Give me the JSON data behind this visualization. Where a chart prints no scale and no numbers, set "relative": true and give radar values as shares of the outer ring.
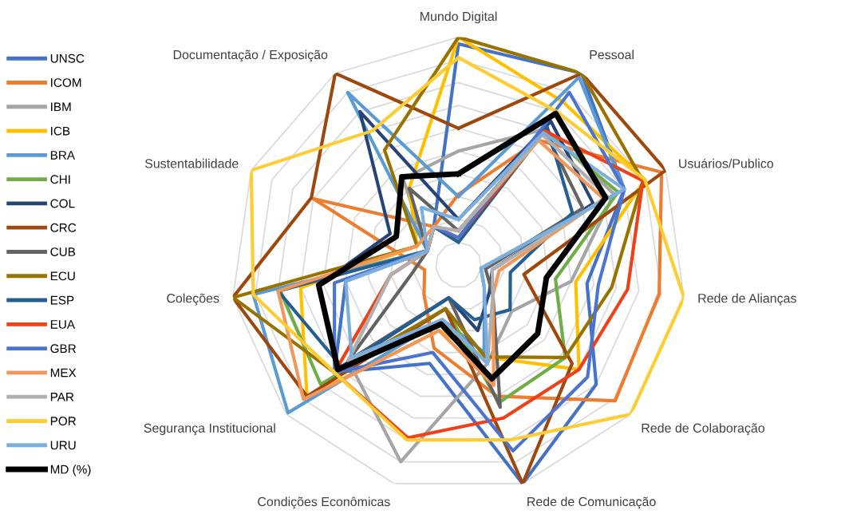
{
  "chart_data": {
    "type": "radar",
    "relative": true,
    "legend": "left",
    "grid": true,
    "categories": [
      "Mundo Digital",
      "Pessoal",
      "Usuários/Publico",
      "Rede de Alianças",
      "Rede de Colaboração",
      "Rede de Comunicação",
      "Condições Econômicas",
      "Segurança Institucional",
      "Coleções",
      "Sustentabilidade",
      "Documentação / Exposição"
    ],
    "series": [
      {
        "name": "UNSC",
        "color": "#4472c4",
        "values": [
          0.97,
          1.0,
          0.8,
          0.57,
          0.8,
          1.0,
          0.45,
          0.72,
          0.5,
          0.15,
          0.2
        ]
      },
      {
        "name": "ICOM",
        "color": "#ed7d31",
        "values": [
          0.31,
          0.65,
          0.98,
          0.89,
          0.91,
          0.6,
          0.38,
          0.2,
          0.15,
          0.7,
          0.2
        ]
      },
      {
        "name": "IBM",
        "color": "#a5a5a5",
        "values": [
          0.5,
          0.71,
          0.75,
          0.5,
          0.31,
          0.45,
          0.9,
          0.64,
          0.3,
          0.15,
          0.45
        ]
      },
      {
        "name": "ICB",
        "color": "#ffc000",
        "values": [
          1.0,
          0.85,
          0.9,
          0.52,
          0.7,
          0.42,
          0.3,
          0.88,
          0.7,
          0.2,
          0.4
        ]
      },
      {
        "name": "BRA",
        "color": "#5b9bd5",
        "values": [
          0.3,
          0.98,
          0.8,
          0.1,
          0.15,
          0.4,
          0.25,
          0.99,
          0.91,
          0.15,
          0.9
        ]
      },
      {
        "name": "CHI",
        "color": "#70ad47",
        "values": [
          0.1,
          0.7,
          0.77,
          0.43,
          0.62,
          0.63,
          0.2,
          0.8,
          0.79,
          0.15,
          0.2
        ]
      },
      {
        "name": "COL",
        "color": "#264478",
        "values": [
          0.2,
          0.75,
          0.65,
          0.15,
          0.18,
          0.3,
          0.15,
          0.7,
          0.62,
          0.33,
          0.8
        ]
      },
      {
        "name": "CRC",
        "color": "#9e480e",
        "values": [
          0.6,
          1.0,
          1.0,
          0.29,
          0.66,
          1.0,
          0.2,
          0.88,
          1.0,
          0.71,
          1.0
        ]
      },
      {
        "name": "CUB",
        "color": "#636363",
        "values": [
          0.15,
          0.7,
          0.6,
          0.12,
          0.2,
          0.65,
          0.15,
          0.64,
          0.2,
          0.15,
          0.4
        ]
      },
      {
        "name": "ECU",
        "color": "#997300",
        "values": [
          1.0,
          1.0,
          0.89,
          0.68,
          0.62,
          0.42,
          0.2,
          0.72,
          1.0,
          0.2,
          0.6
        ]
      },
      {
        "name": "ESP",
        "color": "#255e91",
        "values": [
          0.1,
          0.72,
          0.55,
          0.23,
          0.3,
          0.25,
          0.15,
          0.68,
          0.8,
          0.15,
          0.2
        ]
      },
      {
        "name": "EUA",
        "color": "#f0401a",
        "values": [
          0.12,
          0.7,
          0.89,
          0.75,
          0.7,
          0.7,
          0.79,
          0.72,
          0.3,
          0.15,
          0.2
        ]
      },
      {
        "name": "GBR",
        "color": "#4a74d0",
        "values": [
          0.12,
          0.9,
          0.8,
          0.62,
          0.75,
          0.85,
          0.4,
          0.72,
          0.55,
          0.15,
          0.2
        ]
      },
      {
        "name": "MEX",
        "color": "#f1975a",
        "values": [
          0.15,
          0.65,
          0.7,
          0.18,
          0.2,
          0.55,
          0.3,
          0.9,
          0.8,
          0.2,
          0.2
        ]
      },
      {
        "name": "PAR",
        "color": "#b0b0b0",
        "values": [
          0.15,
          0.68,
          0.72,
          0.15,
          0.2,
          0.45,
          0.25,
          0.64,
          0.3,
          0.15,
          0.2
        ]
      },
      {
        "name": "POR",
        "color": "#ffcd33",
        "values": [
          0.91,
          0.8,
          0.9,
          1.0,
          1.0,
          0.8,
          0.8,
          0.72,
          0.91,
          1.0,
          0.7
        ]
      },
      {
        "name": "URU",
        "color": "#7cafdd",
        "values": [
          0.2,
          0.69,
          0.8,
          0.1,
          0.15,
          0.45,
          0.25,
          0.62,
          0.5,
          0.15,
          0.3
        ]
      },
      {
        "name": "MD (%)",
        "color": "#000000",
        "values": [
          0.4,
          0.79,
          0.71,
          0.39,
          0.46,
          0.52,
          0.27,
          0.7,
          0.62,
          0.3,
          0.46
        ]
      }
    ]
  }
}
